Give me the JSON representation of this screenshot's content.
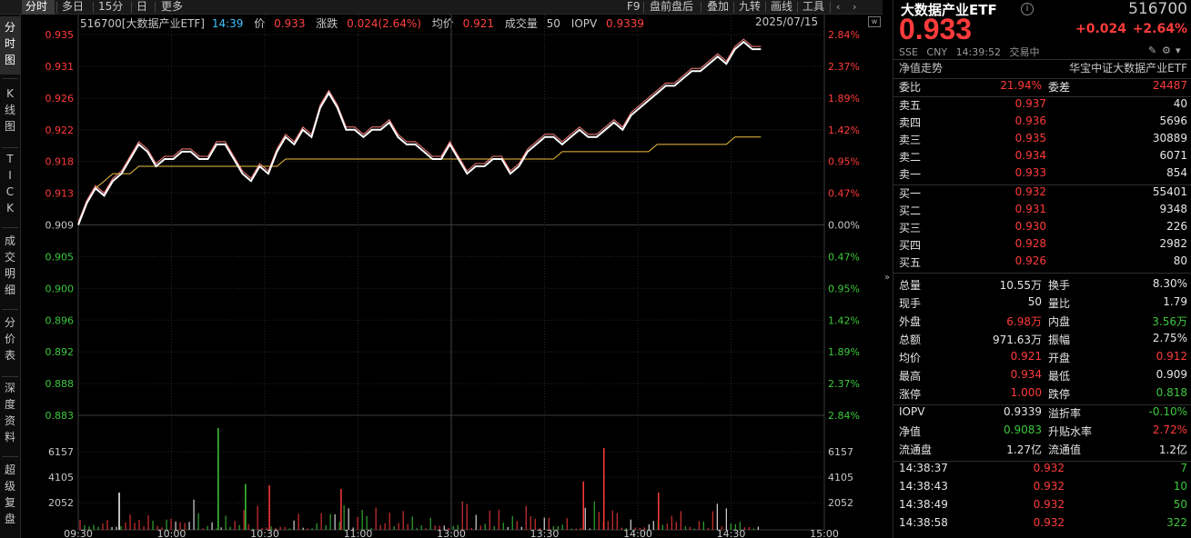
{
  "tabs": [
    {
      "label": "分时",
      "active": true
    },
    {
      "label": "多日",
      "active": false
    },
    {
      "label": "15分",
      "active": false
    },
    {
      "label": "日",
      "active": false
    },
    {
      "label": "更多",
      "active": false
    }
  ],
  "toolbar": [
    "F9",
    "盘前盘后",
    "叠加",
    "九转",
    "画线",
    "工具"
  ],
  "left_nav": [
    {
      "label": "分时图",
      "active": true
    },
    {
      "label": "K线图",
      "active": false
    },
    {
      "label": "TICK",
      "active": false
    },
    {
      "label": "成交明细",
      "active": false
    },
    {
      "label": "分价表",
      "active": false
    },
    {
      "label": "深度资料",
      "active": false
    },
    {
      "label": "超级复盘",
      "active": false
    }
  ],
  "info": {
    "name": "516700[大数据产业ETF]",
    "time": "14:39",
    "price_label": "价",
    "price": "0.933",
    "change_label": "涨跌",
    "change": "0.024(2.64%)",
    "avg_label": "均价",
    "avg": "0.921",
    "vol_label": "成交量",
    "vol": "50",
    "iopv_label": "IOPV",
    "iopv": "0.9339",
    "date": "2025/07/15"
  },
  "chart_data": {
    "type": "line",
    "price_ticks": [
      "0.935",
      "0.931",
      "0.926",
      "0.922",
      "0.918",
      "0.913",
      "0.909",
      "0.905",
      "0.900",
      "0.896",
      "0.892",
      "0.888",
      "0.883"
    ],
    "pct_ticks": [
      "2.84%",
      "2.37%",
      "1.89%",
      "1.42%",
      "0.95%",
      "0.47%",
      "0.00%",
      "0.47%",
      "0.95%",
      "1.42%",
      "1.89%",
      "2.37%",
      "2.84%"
    ],
    "vol_ticks": [
      "6157",
      "4105",
      "2052"
    ],
    "time_ticks": [
      "09:30",
      "10:00",
      "10:30",
      "11:00",
      "13:00",
      "13:30",
      "14:00",
      "14:30",
      "15:00"
    ],
    "ylim": [
      0.883,
      0.935
    ],
    "prev_close": 0.909,
    "price_series": [
      0.909,
      0.912,
      0.914,
      0.913,
      0.915,
      0.916,
      0.918,
      0.92,
      0.919,
      0.917,
      0.918,
      0.918,
      0.919,
      0.919,
      0.918,
      0.918,
      0.92,
      0.92,
      0.918,
      0.916,
      0.915,
      0.917,
      0.916,
      0.919,
      0.921,
      0.92,
      0.922,
      0.921,
      0.925,
      0.927,
      0.925,
      0.922,
      0.922,
      0.921,
      0.922,
      0.922,
      0.923,
      0.921,
      0.92,
      0.92,
      0.919,
      0.918,
      0.918,
      0.92,
      0.918,
      0.916,
      0.917,
      0.917,
      0.918,
      0.918,
      0.916,
      0.917,
      0.919,
      0.92,
      0.921,
      0.921,
      0.92,
      0.921,
      0.922,
      0.921,
      0.921,
      0.922,
      0.923,
      0.922,
      0.924,
      0.925,
      0.926,
      0.927,
      0.928,
      0.928,
      0.929,
      0.93,
      0.93,
      0.931,
      0.932,
      0.931,
      0.933,
      0.934,
      0.933,
      0.933
    ],
    "avg_series": [
      0.909,
      0.912,
      0.914,
      0.915,
      0.916,
      0.916,
      0.916,
      0.917,
      0.917,
      0.917,
      0.917,
      0.917,
      0.917,
      0.917,
      0.917,
      0.917,
      0.917,
      0.917,
      0.917,
      0.917,
      0.917,
      0.917,
      0.917,
      0.917,
      0.918,
      0.918,
      0.918,
      0.918,
      0.918,
      0.918,
      0.918,
      0.918,
      0.918,
      0.918,
      0.918,
      0.918,
      0.918,
      0.918,
      0.918,
      0.918,
      0.918,
      0.918,
      0.918,
      0.918,
      0.918,
      0.918,
      0.918,
      0.918,
      0.918,
      0.918,
      0.918,
      0.918,
      0.918,
      0.918,
      0.918,
      0.918,
      0.919,
      0.919,
      0.919,
      0.919,
      0.919,
      0.919,
      0.919,
      0.919,
      0.919,
      0.919,
      0.919,
      0.92,
      0.92,
      0.92,
      0.92,
      0.92,
      0.92,
      0.92,
      0.92,
      0.92,
      0.921,
      0.921,
      0.921,
      0.921
    ],
    "volume_max": 8210,
    "volume_highlights": [
      {
        "t": 0.06,
        "v": 3000,
        "c": "w"
      },
      {
        "t": 0.205,
        "v": 8210,
        "c": "g"
      },
      {
        "t": 0.245,
        "v": 3700,
        "c": "g"
      },
      {
        "t": 0.28,
        "v": 3600,
        "c": "r"
      },
      {
        "t": 0.385,
        "v": 3300,
        "c": "r"
      },
      {
        "t": 0.77,
        "v": 6600,
        "c": "r"
      },
      {
        "t": 0.74,
        "v": 3900,
        "c": "r"
      },
      {
        "t": 0.85,
        "v": 3000,
        "c": "r"
      }
    ]
  },
  "quote": {
    "title": "大数据产业ETF",
    "code": "516700",
    "price": "0.933",
    "change": "+0.024",
    "change_pct": "+2.64%",
    "exchange": "SSE",
    "currency": "CNY",
    "time": "14:39:52",
    "status": "交易中",
    "nav_label": "净值走势",
    "index_name": "华宝中证大数据产业ETF",
    "weibi_label": "委比",
    "weibi": "21.94%",
    "weicha_label": "委差",
    "weicha": "24487"
  },
  "asks": [
    {
      "label": "卖五",
      "price": "0.937",
      "vol": "40"
    },
    {
      "label": "卖四",
      "price": "0.936",
      "vol": "5696"
    },
    {
      "label": "卖三",
      "price": "0.935",
      "vol": "30889"
    },
    {
      "label": "卖二",
      "price": "0.934",
      "vol": "6071"
    },
    {
      "label": "卖一",
      "price": "0.933",
      "vol": "854"
    }
  ],
  "bids": [
    {
      "label": "买一",
      "price": "0.932",
      "vol": "55401"
    },
    {
      "label": "买二",
      "price": "0.931",
      "vol": "9348"
    },
    {
      "label": "买三",
      "price": "0.930",
      "vol": "226"
    },
    {
      "label": "买四",
      "price": "0.928",
      "vol": "2982"
    },
    {
      "label": "买五",
      "price": "0.926",
      "vol": "80"
    }
  ],
  "stats": [
    {
      "l1": "总量",
      "v1": "10.55万",
      "c1": "white",
      "l2": "换手",
      "v2": "8.30%",
      "c2": "white"
    },
    {
      "l1": "现手",
      "v1": "50",
      "c1": "white",
      "l2": "量比",
      "v2": "1.79",
      "c2": "white"
    },
    {
      "l1": "外盘",
      "v1": "6.98万",
      "c1": "red",
      "l2": "内盘",
      "v2": "3.56万",
      "c2": "green"
    },
    {
      "l1": "总额",
      "v1": "971.63万",
      "c1": "white",
      "l2": "振幅",
      "v2": "2.75%",
      "c2": "white"
    },
    {
      "l1": "均价",
      "v1": "0.921",
      "c1": "red",
      "l2": "开盘",
      "v2": "0.912",
      "c2": "red"
    },
    {
      "l1": "最高",
      "v1": "0.934",
      "c1": "red",
      "l2": "最低",
      "v2": "0.909",
      "c2": "white"
    },
    {
      "l1": "涨停",
      "v1": "1.000",
      "c1": "red",
      "l2": "跌停",
      "v2": "0.818",
      "c2": "green"
    }
  ],
  "stats2": [
    {
      "l1": "IOPV",
      "v1": "0.9339",
      "c1": "white",
      "l2": "溢折率",
      "v2": "-0.10%",
      "c2": "green"
    },
    {
      "l1": "净值",
      "v1": "0.9083",
      "c1": "green",
      "l2": "升贴水率",
      "v2": "2.72%",
      "c2": "red"
    },
    {
      "l1": "流通盘",
      "v1": "1.27亿",
      "c1": "white",
      "l2": "流通值",
      "v2": "1.2亿",
      "c2": "white"
    }
  ],
  "ticks": [
    {
      "time": "14:38:37",
      "price": "0.932",
      "vol": "7",
      "c": "green"
    },
    {
      "time": "14:38:43",
      "price": "0.932",
      "vol": "10",
      "c": "green"
    },
    {
      "time": "14:38:49",
      "price": "0.932",
      "vol": "50",
      "c": "green"
    },
    {
      "time": "14:38:58",
      "price": "0.932",
      "vol": "322",
      "c": "green"
    }
  ],
  "colors": {
    "up": "#ff3b3b",
    "down": "#3cc83c",
    "price_line": "#ffffff",
    "avg_line": "#f0c040",
    "pink_line": "#ff8080",
    "grid": "#262626"
  }
}
